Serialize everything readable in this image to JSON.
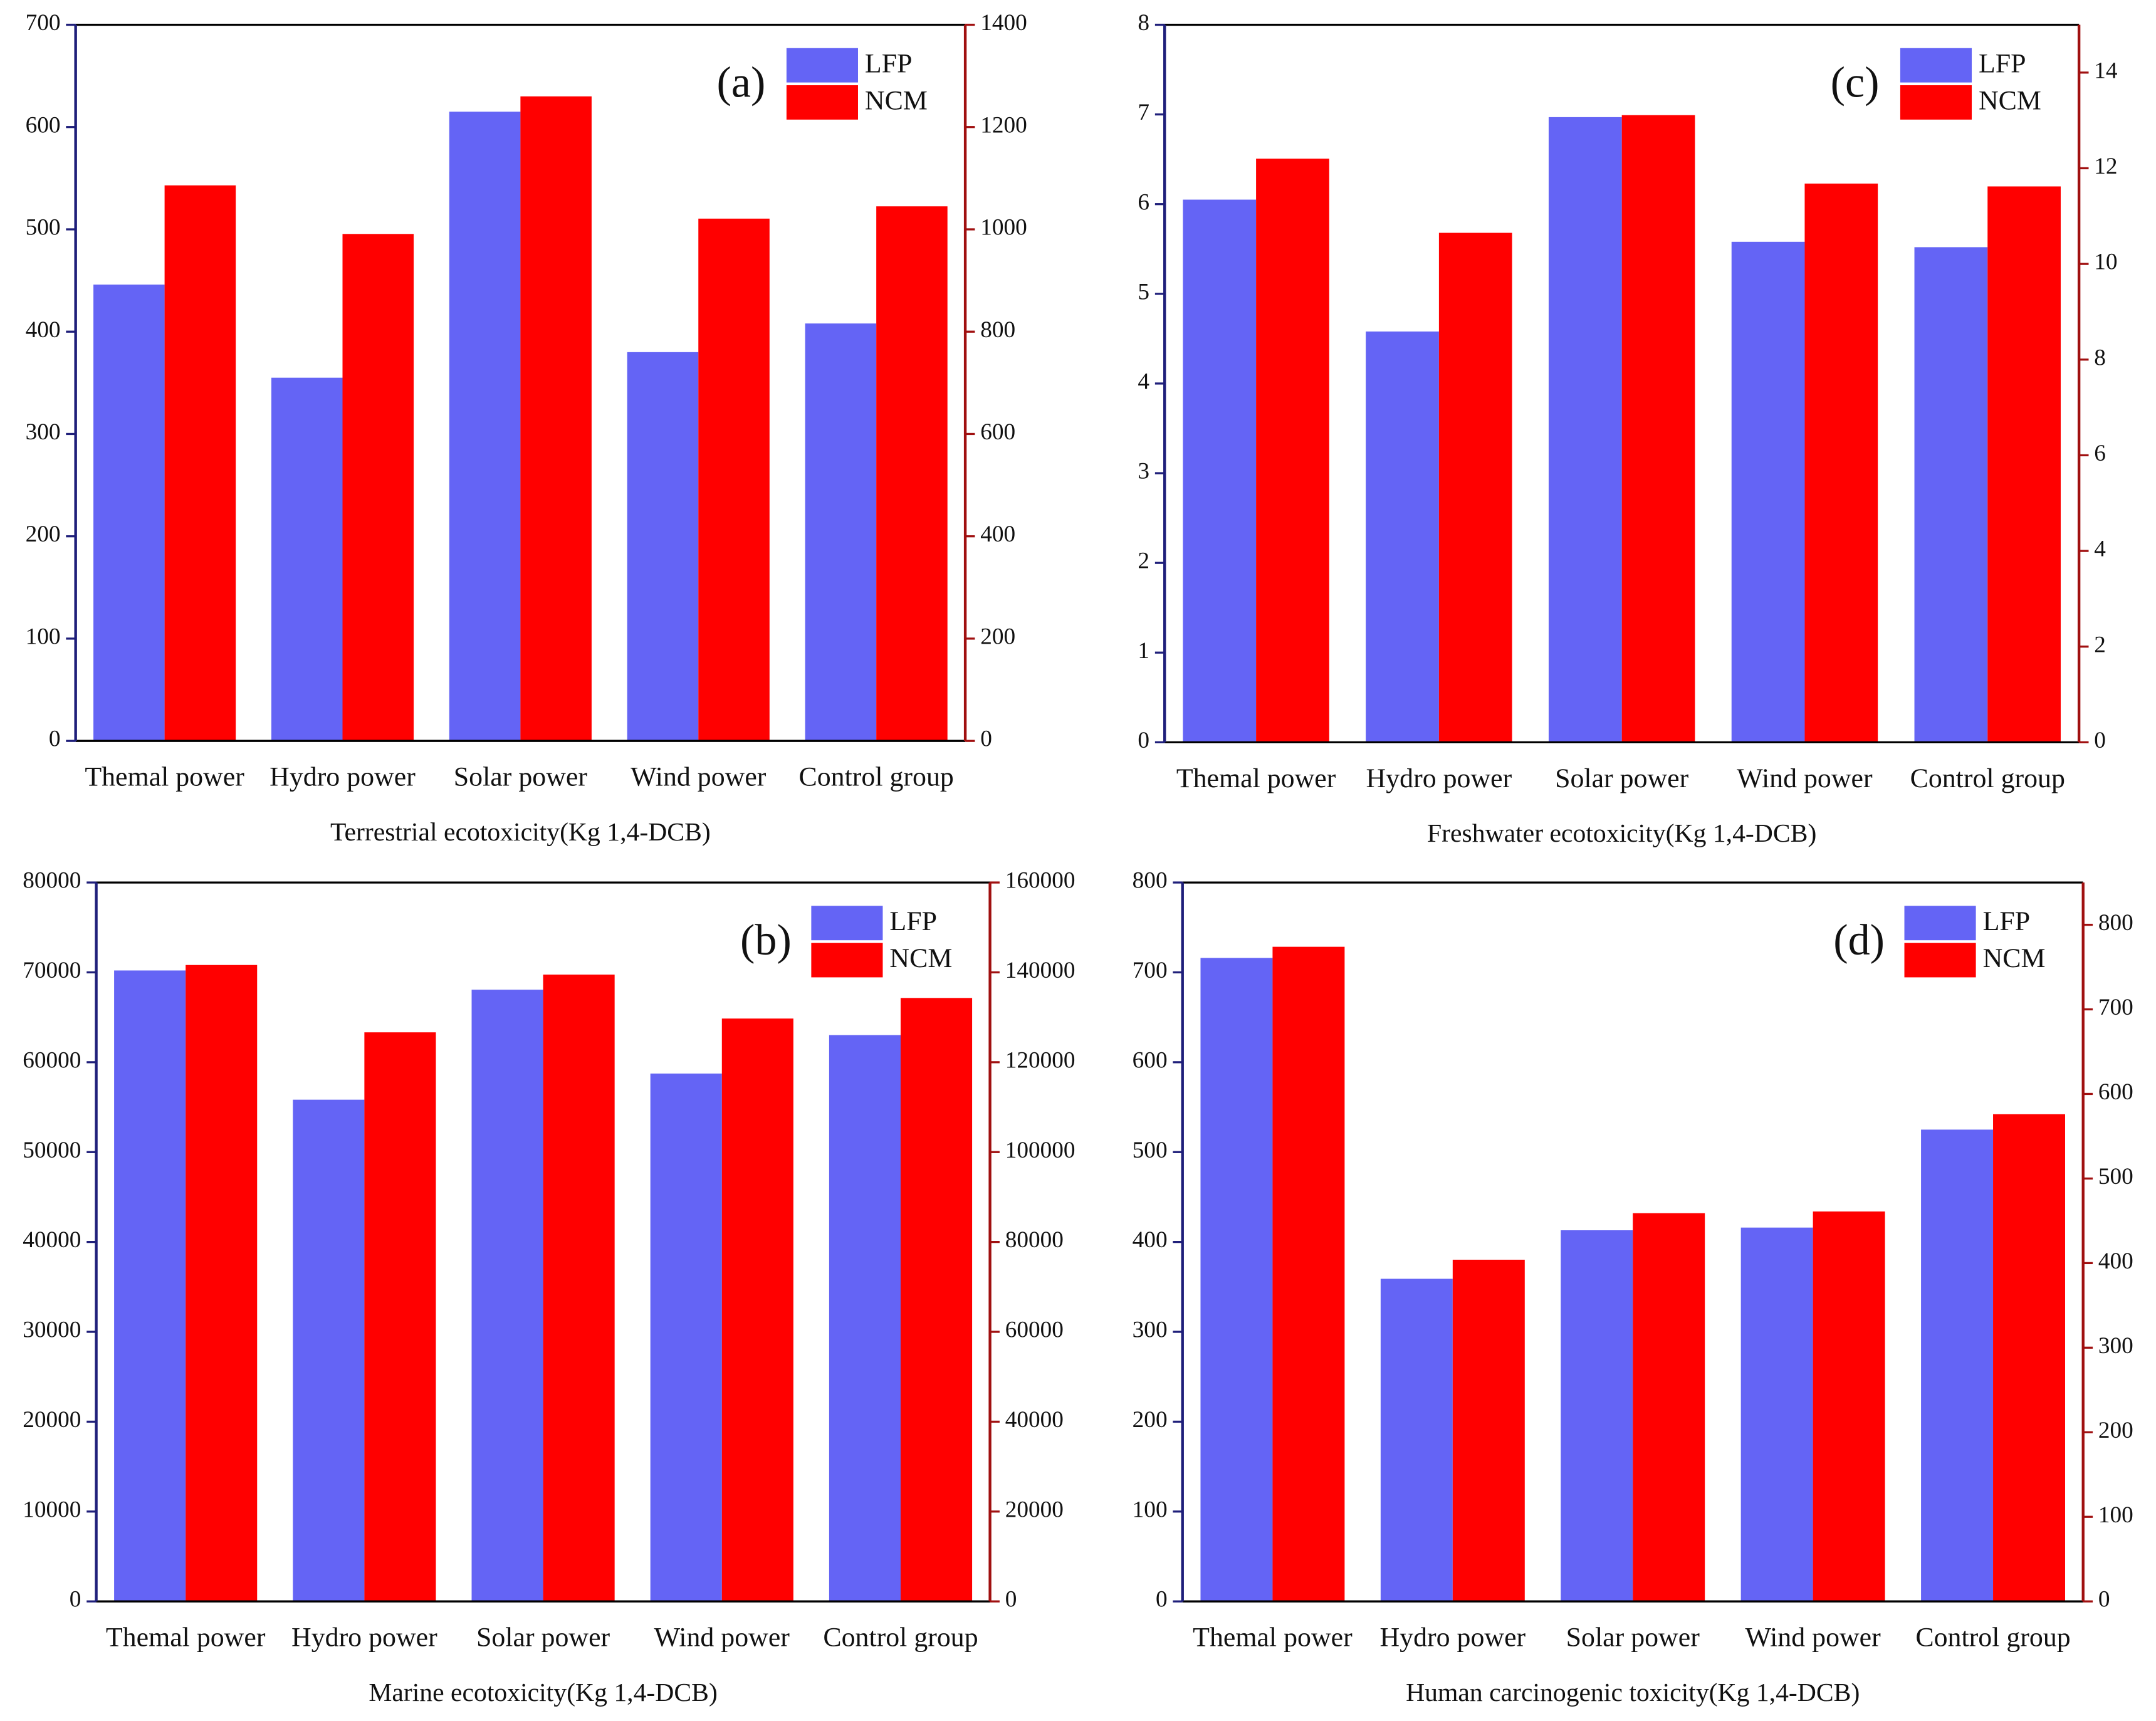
{
  "chart_data": [
    {
      "type": "bar",
      "panel_label": "(a)",
      "x_label": "Terrestrial ecotoxicity(Kg 1,4-DCB)",
      "categories": [
        "Themal power",
        "Hydro power",
        "Solar power",
        "Wind power",
        "Control group"
      ],
      "series": [
        {
          "name": "LFP",
          "color": "#6464f5",
          "values": [
            446,
            355,
            615,
            380,
            408
          ]
        },
        {
          "name": "NCM",
          "color": "#ff0000",
          "axis": "y2",
          "values": [
            1086,
            991,
            1260,
            1021,
            1045
          ]
        }
      ],
      "ylim": [
        0,
        700
      ],
      "yticks": [
        0,
        100,
        200,
        300,
        400,
        500,
        600,
        700
      ],
      "y2lim": [
        0,
        1400
      ],
      "y2ticks": [
        0,
        200,
        400,
        600,
        800,
        1000,
        1200,
        1400
      ],
      "legend": "upper right"
    },
    {
      "type": "bar",
      "panel_label": "(c)",
      "x_label": "Freshwater ecotoxicity(Kg 1,4-DCB)",
      "categories": [
        "Themal power",
        "Hydro power",
        "Solar power",
        "Wind power",
        "Control group"
      ],
      "series": [
        {
          "name": "LFP",
          "color": "#6464f5",
          "values": [
            6.05,
            4.58,
            6.97,
            5.58,
            5.52
          ]
        },
        {
          "name": "NCM",
          "color": "#ff0000",
          "axis": "y2",
          "values": [
            12.2,
            10.65,
            13.11,
            11.68,
            11.62
          ]
        }
      ],
      "ylim": [
        0,
        8
      ],
      "yticks": [
        0,
        1,
        2,
        3,
        4,
        5,
        6,
        7,
        8
      ],
      "y2lim": [
        0,
        15
      ],
      "y2ticks": [
        0,
        2,
        4,
        6,
        8,
        10,
        12,
        14
      ],
      "legend": "upper right"
    },
    {
      "type": "bar",
      "panel_label": "(b)",
      "x_label": "Marine ecotoxicity(Kg 1,4-DCB)",
      "categories": [
        "Themal power",
        "Hydro power",
        "Solar power",
        "Wind power",
        "Control group"
      ],
      "series": [
        {
          "name": "LFP",
          "color": "#6464f5",
          "values": [
            70210,
            55830,
            68070,
            58740,
            63020
          ]
        },
        {
          "name": "NCM",
          "color": "#ff0000",
          "axis": "y2",
          "values": [
            141640,
            126650,
            139500,
            129720,
            134300
          ]
        }
      ],
      "ylim": [
        0,
        80000
      ],
      "yticks": [
        0,
        10000,
        20000,
        30000,
        40000,
        50000,
        60000,
        70000,
        80000
      ],
      "y2lim": [
        0,
        160000
      ],
      "y2ticks": [
        0,
        20000,
        40000,
        60000,
        80000,
        100000,
        120000,
        140000,
        160000
      ],
      "legend": "upper right"
    },
    {
      "type": "bar",
      "panel_label": "(d)",
      "x_label": "Human carcinogenic toxicity(Kg 1,4-DCB)",
      "categories": [
        "Themal power",
        "Hydro power",
        "Solar power",
        "Wind power",
        "Control group"
      ],
      "series": [
        {
          "name": "LFP",
          "color": "#6464f5",
          "values": [
            716,
            359,
            413,
            416,
            525
          ]
        },
        {
          "name": "NCM",
          "color": "#ff0000",
          "axis": "y2",
          "values": [
            774,
            404,
            459,
            461,
            576
          ]
        }
      ],
      "ylim": [
        0,
        800
      ],
      "yticks": [
        0,
        100,
        200,
        300,
        400,
        500,
        600,
        700,
        800
      ],
      "y2lim": [
        0,
        850
      ],
      "y2ticks": [
        0,
        100,
        200,
        300,
        400,
        500,
        600,
        700,
        800
      ],
      "legend": "upper right"
    }
  ]
}
